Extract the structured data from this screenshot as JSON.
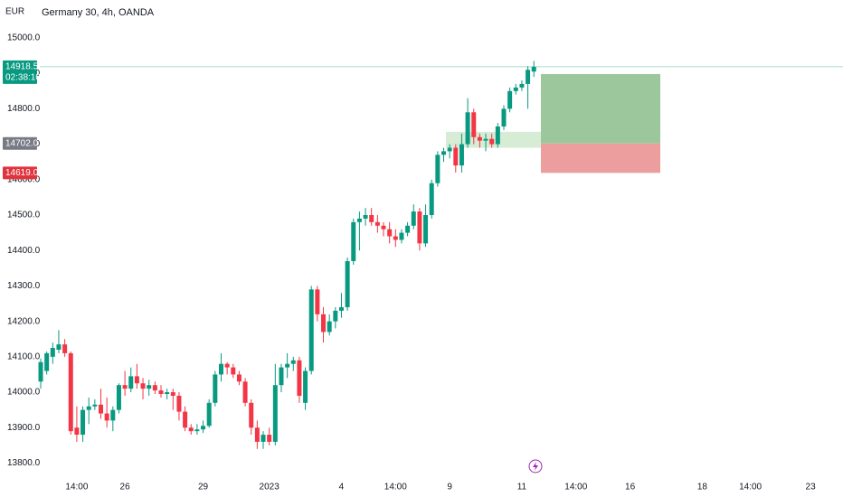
{
  "chart_data": {
    "type": "candlestick",
    "title": "Germany 30, 4h, OANDA",
    "currency": "EUR",
    "up_color": "#089981",
    "down_color": "#f23645",
    "open": [
      14030,
      14060,
      14100,
      14120,
      14135,
      14110,
      13900,
      13880,
      13950,
      13960,
      13965,
      13940,
      13920,
      13950,
      14020,
      14010,
      14045,
      14025,
      14010,
      14020,
      14005,
      13995,
      14000,
      13990,
      13945,
      13900,
      13890,
      13895,
      13905,
      13970,
      14050,
      14080,
      14070,
      14050,
      14030,
      13970,
      13900,
      13860,
      13880,
      13860,
      14020,
      14070,
      14080,
      14090,
      13970,
      14060,
      14290,
      14220,
      14170,
      14200,
      14230,
      14240,
      14370,
      14480,
      14490,
      14500,
      14480,
      14470,
      14460,
      14440,
      14430,
      14450,
      14470,
      14510,
      14420,
      14500,
      14590,
      14670,
      14680,
      14690,
      14640,
      14700,
      14790,
      14720,
      14710,
      14715,
      14700,
      14750,
      14800,
      14850,
      14860,
      14870,
      14905
    ],
    "high": [
      14095,
      14115,
      14140,
      14175,
      14150,
      14115,
      13960,
      13960,
      13985,
      13980,
      14010,
      13985,
      13960,
      14025,
      14060,
      14070,
      14080,
      14040,
      14035,
      14030,
      14020,
      14010,
      14010,
      14000,
      13960,
      13910,
      13910,
      13920,
      13980,
      14060,
      14110,
      14085,
      14080,
      14060,
      14040,
      13980,
      13920,
      13890,
      13900,
      14080,
      14080,
      14110,
      14100,
      14100,
      14070,
      14300,
      14300,
      14240,
      14220,
      14240,
      14280,
      14380,
      14490,
      14510,
      14520,
      14520,
      14500,
      14480,
      14480,
      14460,
      14460,
      14480,
      14530,
      14520,
      14530,
      14600,
      14680,
      14690,
      14700,
      14700,
      14730,
      14830,
      14800,
      14730,
      14730,
      14730,
      14760,
      14810,
      14860,
      14870,
      14880,
      14920,
      14935
    ],
    "low": [
      14010,
      14050,
      14080,
      14110,
      14100,
      13880,
      13860,
      13860,
      13910,
      13950,
      13925,
      13900,
      13890,
      13940,
      13990,
      14000,
      14010,
      13980,
      13990,
      13995,
      13985,
      13980,
      13950,
      13920,
      13890,
      13880,
      13880,
      13885,
      13900,
      13960,
      14030,
      14050,
      14040,
      14020,
      13960,
      13880,
      13840,
      13840,
      13850,
      13850,
      14000,
      14040,
      14060,
      13970,
      13950,
      14050,
      14200,
      14140,
      14160,
      14180,
      14210,
      14230,
      14360,
      14400,
      14470,
      14470,
      14450,
      14440,
      14420,
      14410,
      14420,
      14440,
      14460,
      14400,
      14410,
      14490,
      14580,
      14650,
      14660,
      14620,
      14620,
      14690,
      14700,
      14690,
      14680,
      14690,
      14690,
      14740,
      14790,
      14840,
      14850,
      14800,
      14890
    ],
    "close": [
      14085,
      14110,
      14125,
      14135,
      14110,
      13890,
      13880,
      13950,
      13960,
      13965,
      13940,
      13920,
      13950,
      14020,
      14010,
      14045,
      14025,
      14010,
      14020,
      14005,
      13995,
      14000,
      13990,
      13945,
      13900,
      13890,
      13895,
      13905,
      13970,
      14050,
      14080,
      14070,
      14050,
      14030,
      13970,
      13900,
      13860,
      13880,
      13860,
      14020,
      14070,
      14080,
      14090,
      13990,
      14060,
      14290,
      14220,
      14170,
      14200,
      14230,
      14240,
      14370,
      14480,
      14490,
      14500,
      14480,
      14470,
      14460,
      14440,
      14430,
      14450,
      14470,
      14510,
      14420,
      14500,
      14590,
      14670,
      14680,
      14690,
      14640,
      14700,
      14790,
      14720,
      14710,
      14715,
      14700,
      14750,
      14800,
      14850,
      14860,
      14870,
      14910,
      14918.5
    ],
    "xlim": [
      -6.77,
      133.4
    ],
    "xticks": [
      {
        "value": 6,
        "label": "14:00"
      },
      {
        "value": 14,
        "label": "26"
      },
      {
        "value": 27,
        "label": "29"
      },
      {
        "value": 38,
        "label": "2023"
      },
      {
        "value": 50,
        "label": "4"
      },
      {
        "value": 59,
        "label": "14:00"
      },
      {
        "value": 68,
        "label": "9"
      },
      {
        "value": 80,
        "label": "11"
      },
      {
        "value": 89,
        "label": "14:00"
      },
      {
        "value": 98,
        "label": "16"
      },
      {
        "value": 110,
        "label": "18"
      },
      {
        "value": 118,
        "label": "14:00"
      },
      {
        "value": 128,
        "label": "23"
      }
    ],
    "ylim": [
      13768,
      15107
    ],
    "yticks": [
      {
        "value": 13800,
        "label": "13800.0"
      },
      {
        "value": 13900,
        "label": "13900.0"
      },
      {
        "value": 14000,
        "label": "14000.0"
      },
      {
        "value": 14100,
        "label": "14100.0"
      },
      {
        "value": 14200,
        "label": "14200.0"
      },
      {
        "value": 14300,
        "label": "14300.0"
      },
      {
        "value": 14400,
        "label": "14400.0"
      },
      {
        "value": 14500,
        "label": "14500.0"
      },
      {
        "value": 14600,
        "label": "14600.0"
      },
      {
        "value": 14700,
        "label": "14700.0"
      },
      {
        "value": 14800,
        "label": "14800.0"
      },
      {
        "value": 14900,
        "label": "14900.0"
      },
      {
        "value": 15000,
        "label": "15000.0"
      }
    ],
    "last_price": {
      "value": 14918.5,
      "label": "14918.5",
      "color": "#089981"
    },
    "countdown": "02:38:10",
    "position": {
      "target": {
        "value": 14898.0,
        "label": "14898.0",
        "color": "#2e7d32"
      },
      "entry": {
        "value": 14702.0,
        "label": "14702.0",
        "color": "#787b86"
      },
      "stop": {
        "value": 14619.0,
        "label": "14619.0",
        "color": "#e0343d"
      },
      "profit_color": "#9cc79c",
      "loss_color": "#ec9d9d"
    },
    "zone": {
      "low": 14690,
      "high": 14735,
      "color": "#d6ecd4"
    }
  }
}
